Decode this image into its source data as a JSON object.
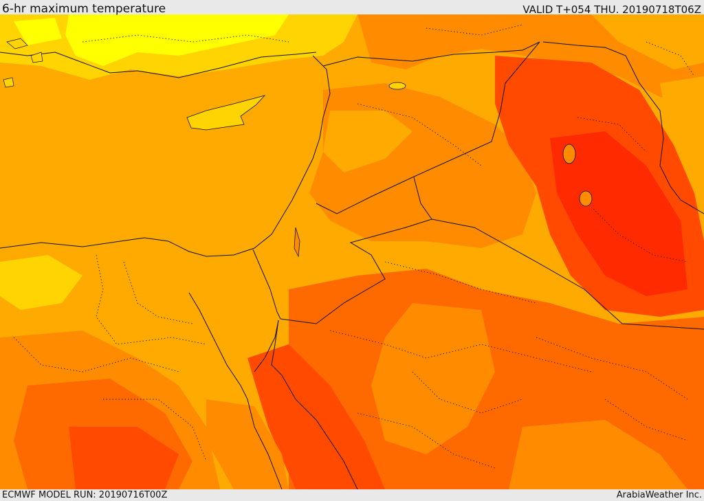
{
  "header": {
    "title": "6-hr maximum temperature",
    "valid_time": "VALID T+054 THU. 20190718T06Z"
  },
  "footer": {
    "model_run": "ECMWF MODEL RUN: 20190716T00Z",
    "credit": "ArabiaWeather Inc."
  },
  "map": {
    "region": "Eastern Mediterranean / Levant / Middle East",
    "colors": {
      "hot_yellow": "#ffff00",
      "yellow_orange": "#ffd400",
      "light_orange": "#ffaa00",
      "orange": "#ff8c00",
      "dark_orange": "#ff6a00",
      "red_orange": "#ff4a00",
      "red": "#ff2a00",
      "border_line": "#111111"
    }
  }
}
